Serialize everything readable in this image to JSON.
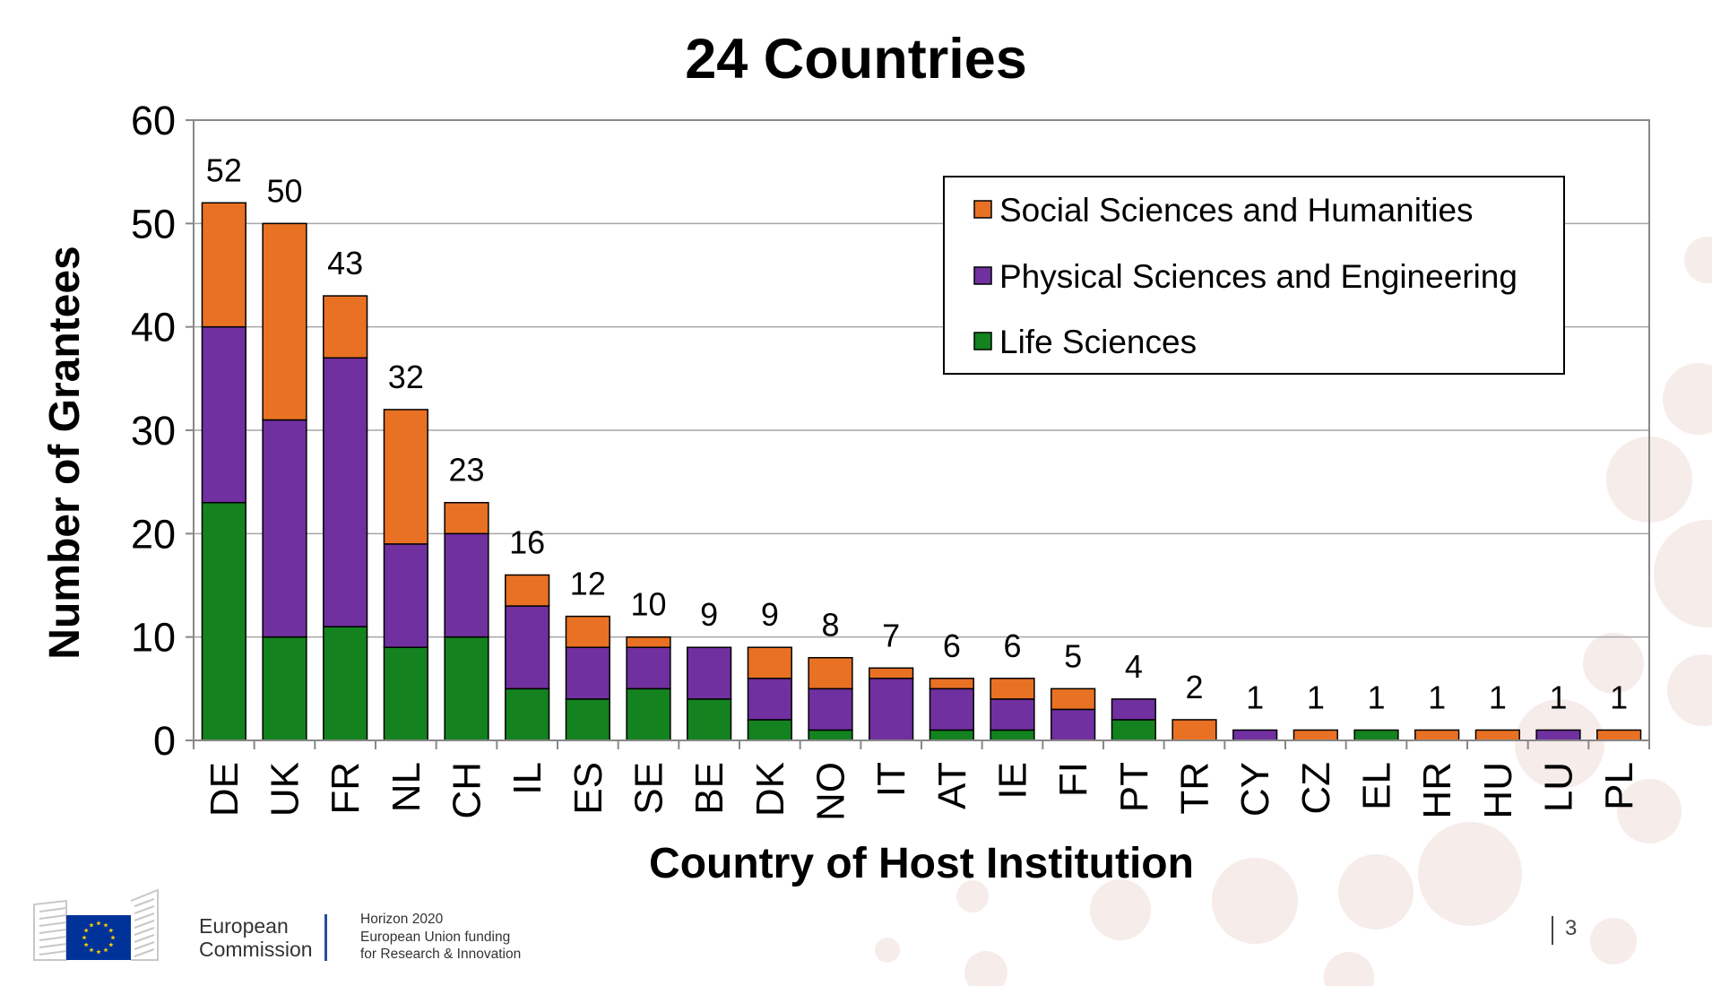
{
  "chart_data": {
    "type": "bar",
    "stacked": true,
    "title": "24 Countries",
    "xlabel": "Country of Host Institution",
    "ylabel": "Number of Grantees",
    "ylim": [
      0,
      60
    ],
    "yticks": [
      0,
      10,
      20,
      30,
      40,
      50,
      60
    ],
    "grid": true,
    "legend_position": "top-right",
    "categories": [
      "DE",
      "UK",
      "FR",
      "NL",
      "CH",
      "IL",
      "ES",
      "SE",
      "BE",
      "DK",
      "NO",
      "IT",
      "AT",
      "IE",
      "FI",
      "PT",
      "TR",
      "CY",
      "CZ",
      "EL",
      "HR",
      "HU",
      "LU",
      "PL"
    ],
    "series": [
      {
        "name": "Life Sciences",
        "color": "#13821f",
        "values": [
          23,
          10,
          11,
          9,
          10,
          5,
          4,
          5,
          4,
          2,
          1,
          0,
          1,
          1,
          0,
          2,
          0,
          0,
          0,
          1,
          0,
          0,
          0,
          0
        ]
      },
      {
        "name": "Physical Sciences and Engineering",
        "color": "#7030a0",
        "values": [
          17,
          21,
          26,
          10,
          10,
          8,
          5,
          4,
          5,
          4,
          4,
          6,
          4,
          3,
          3,
          2,
          0,
          1,
          0,
          0,
          0,
          0,
          1,
          0
        ]
      },
      {
        "name": "Social Sciences and Humanities",
        "color": "#e97124",
        "values": [
          12,
          19,
          6,
          13,
          3,
          3,
          3,
          1,
          0,
          3,
          3,
          1,
          1,
          2,
          2,
          0,
          2,
          0,
          1,
          0,
          1,
          1,
          0,
          1
        ]
      }
    ],
    "totals": [
      52,
      50,
      43,
      32,
      23,
      16,
      12,
      10,
      9,
      9,
      8,
      7,
      6,
      6,
      5,
      4,
      2,
      1,
      1,
      1,
      1,
      1,
      1,
      1
    ],
    "legend_order": [
      "Social Sciences and Humanities",
      "Physical Sciences and Engineering",
      "Life Sciences"
    ]
  },
  "footer": {
    "org_line1": "European",
    "org_line2": "Commission",
    "program_line1": "Horizon 2020",
    "program_line2": "European Union funding",
    "program_line3": "for Research & Innovation",
    "page_number": "3"
  },
  "colors": {
    "accent_blue": "#1f4e9f",
    "eu_flag_blue": "#003399",
    "eu_star_yellow": "#ffcc00"
  }
}
